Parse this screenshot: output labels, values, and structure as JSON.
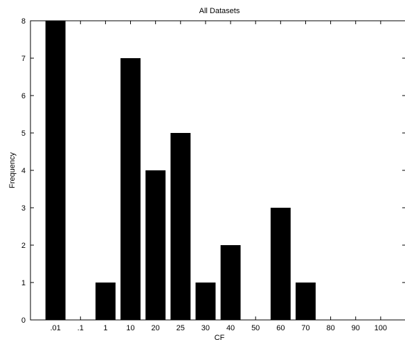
{
  "chart_data": {
    "type": "bar",
    "title": "All Datasets",
    "xlabel": "CF",
    "ylabel": "Frequency",
    "categories": [
      ".01",
      ".1",
      "1",
      "10",
      "20",
      "25",
      "30",
      "40",
      "50",
      "60",
      "70",
      "80",
      "90",
      "100"
    ],
    "values": [
      8,
      0,
      1,
      7,
      4,
      5,
      1,
      2,
      0,
      3,
      1,
      0,
      0,
      0
    ],
    "ylim": [
      0,
      8
    ],
    "yticks": [
      0,
      1,
      2,
      3,
      4,
      5,
      6,
      7,
      8
    ],
    "bar_color": "#000000",
    "grid": false,
    "legend": "none"
  }
}
